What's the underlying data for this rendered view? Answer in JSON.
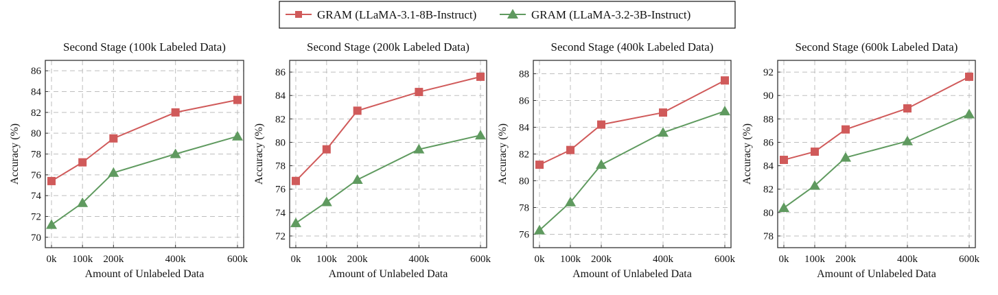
{
  "legend": {
    "placement": "top-center",
    "series_names": [
      "GRAM (LLaMA-3.1-8B-Instruct)",
      "GRAM (LLaMA-3.2-3B-Instruct)"
    ]
  },
  "colors": {
    "series_1": "#d05a5a",
    "series_2": "#5f9a5f",
    "grid": "#bdbdbd",
    "axis": "#333333"
  },
  "markers": [
    "square",
    "triangle"
  ],
  "chart_data": [
    {
      "type": "line",
      "title": "Second Stage (100k Labeled Data)",
      "xlabel": "Amount of Unlabeled Data",
      "ylabel": "Accuracy (%)",
      "x": [
        0,
        100,
        200,
        400,
        600
      ],
      "x_tick_labels": [
        "0k",
        "100k",
        "200k",
        "400k",
        "600k"
      ],
      "y_ticks": [
        70,
        72,
        74,
        76,
        78,
        80,
        82,
        84,
        86
      ],
      "xlim": [
        -20,
        620
      ],
      "ylim": [
        69,
        87
      ],
      "grid": true,
      "series": [
        {
          "name": "GRAM (LLaMA-3.1-8B-Instruct)",
          "values": [
            75.4,
            77.2,
            79.5,
            82.0,
            83.2
          ]
        },
        {
          "name": "GRAM (LLaMA-3.2-3B-Instruct)",
          "values": [
            71.2,
            73.3,
            76.2,
            78.0,
            79.7
          ]
        }
      ]
    },
    {
      "type": "line",
      "title": "Second Stage (200k Labeled Data)",
      "xlabel": "Amount of Unlabeled Data",
      "ylabel": "Accuracy (%)",
      "x": [
        0,
        100,
        200,
        400,
        600
      ],
      "x_tick_labels": [
        "0k",
        "100k",
        "200k",
        "400k",
        "600k"
      ],
      "y_ticks": [
        72,
        74,
        76,
        78,
        80,
        82,
        84,
        86
      ],
      "xlim": [
        -20,
        620
      ],
      "ylim": [
        71,
        87
      ],
      "grid": true,
      "series": [
        {
          "name": "GRAM (LLaMA-3.1-8B-Instruct)",
          "values": [
            76.7,
            79.4,
            82.7,
            84.3,
            85.6
          ]
        },
        {
          "name": "GRAM (LLaMA-3.2-3B-Instruct)",
          "values": [
            73.1,
            74.9,
            76.8,
            79.4,
            80.6
          ]
        }
      ]
    },
    {
      "type": "line",
      "title": "Second Stage (400k Labeled Data)",
      "xlabel": "Amount of Unlabeled Data",
      "ylabel": "Accuracy (%)",
      "x": [
        0,
        100,
        200,
        400,
        600
      ],
      "x_tick_labels": [
        "0k",
        "100k",
        "200k",
        "400k",
        "600k"
      ],
      "y_ticks": [
        76,
        78,
        80,
        82,
        84,
        86,
        88
      ],
      "xlim": [
        -20,
        620
      ],
      "ylim": [
        75,
        89
      ],
      "grid": true,
      "series": [
        {
          "name": "GRAM (LLaMA-3.1-8B-Instruct)",
          "values": [
            81.2,
            82.3,
            84.2,
            85.1,
            87.5
          ]
        },
        {
          "name": "GRAM (LLaMA-3.2-3B-Instruct)",
          "values": [
            76.3,
            78.4,
            81.2,
            83.6,
            85.2
          ]
        }
      ]
    },
    {
      "type": "line",
      "title": "Second Stage (600k Labeled Data)",
      "xlabel": "Amount of Unlabeled Data",
      "ylabel": "Accuracy (%)",
      "x": [
        0,
        100,
        200,
        400,
        600
      ],
      "x_tick_labels": [
        "0k",
        "100k",
        "200k",
        "400k",
        "600k"
      ],
      "y_ticks": [
        78,
        80,
        82,
        84,
        86,
        88,
        90,
        92
      ],
      "xlim": [
        -20,
        620
      ],
      "ylim": [
        77,
        93
      ],
      "grid": true,
      "series": [
        {
          "name": "GRAM (LLaMA-3.1-8B-Instruct)",
          "values": [
            84.5,
            85.2,
            87.1,
            88.9,
            91.6
          ]
        },
        {
          "name": "GRAM (LLaMA-3.2-3B-Instruct)",
          "values": [
            80.4,
            82.3,
            84.7,
            86.1,
            88.4
          ]
        }
      ]
    }
  ]
}
